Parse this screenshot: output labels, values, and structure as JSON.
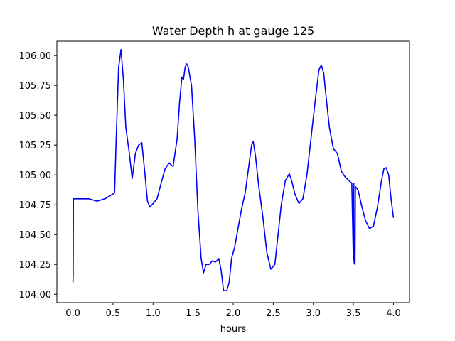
{
  "chart_data": {
    "type": "line",
    "title": "Water Depth h at gauge 125",
    "xlabel": "hours",
    "ylabel": "",
    "xlim": [
      -0.2,
      4.2
    ],
    "ylim": [
      103.93,
      106.12
    ],
    "xticks": [
      0.0,
      0.5,
      1.0,
      1.5,
      2.0,
      2.5,
      3.0,
      3.5,
      4.0
    ],
    "xtick_labels": [
      "0.0",
      "0.5",
      "1.0",
      "1.5",
      "2.0",
      "2.5",
      "3.0",
      "3.5",
      "4.0"
    ],
    "yticks": [
      104.0,
      104.25,
      104.5,
      104.75,
      105.0,
      105.25,
      105.5,
      105.75,
      106.0
    ],
    "ytick_labels": [
      "104.00",
      "104.25",
      "104.50",
      "104.75",
      "105.00",
      "105.25",
      "105.50",
      "105.75",
      "106.00"
    ],
    "grid": false,
    "series": [
      {
        "color": "#0000ff",
        "x": [
          0.0,
          0.003,
          0.006,
          0.2,
          0.3,
          0.4,
          0.5,
          0.52,
          0.54,
          0.57,
          0.6,
          0.63,
          0.66,
          0.7,
          0.74,
          0.78,
          0.82,
          0.86,
          0.9,
          0.93,
          0.96,
          1.0,
          1.05,
          1.1,
          1.15,
          1.2,
          1.25,
          1.3,
          1.33,
          1.36,
          1.38,
          1.4,
          1.42,
          1.44,
          1.48,
          1.52,
          1.56,
          1.6,
          1.63,
          1.66,
          1.7,
          1.74,
          1.78,
          1.82,
          1.85,
          1.88,
          1.92,
          1.95,
          1.98,
          2.02,
          2.06,
          2.1,
          2.15,
          2.2,
          2.23,
          2.25,
          2.28,
          2.32,
          2.37,
          2.42,
          2.47,
          2.52,
          2.56,
          2.6,
          2.65,
          2.7,
          2.73,
          2.77,
          2.82,
          2.87,
          2.92,
          2.97,
          3.02,
          3.07,
          3.1,
          3.13,
          3.16,
          3.2,
          3.25,
          3.3,
          3.35,
          3.4,
          3.45,
          3.48,
          3.5,
          3.505,
          3.51,
          3.52,
          3.525,
          3.53,
          3.56,
          3.6,
          3.65,
          3.7,
          3.75,
          3.8,
          3.85,
          3.88,
          3.91,
          3.94,
          3.97,
          4.0
        ],
        "y": [
          104.1,
          104.15,
          104.8,
          104.8,
          104.78,
          104.8,
          104.84,
          104.85,
          105.3,
          105.9,
          106.05,
          105.8,
          105.4,
          105.2,
          104.97,
          105.18,
          105.25,
          105.27,
          105.0,
          104.78,
          104.73,
          104.76,
          104.8,
          104.93,
          105.05,
          105.1,
          105.07,
          105.3,
          105.6,
          105.82,
          105.8,
          105.9,
          105.93,
          105.9,
          105.75,
          105.3,
          104.7,
          104.3,
          104.18,
          104.25,
          104.25,
          104.28,
          104.27,
          104.3,
          104.2,
          104.03,
          104.03,
          104.1,
          104.3,
          104.4,
          104.55,
          104.7,
          104.85,
          105.1,
          105.25,
          105.28,
          105.15,
          104.9,
          104.65,
          104.35,
          104.21,
          104.25,
          104.5,
          104.75,
          104.95,
          105.01,
          104.95,
          104.84,
          104.76,
          104.8,
          105.0,
          105.3,
          105.6,
          105.88,
          105.92,
          105.85,
          105.65,
          105.4,
          105.22,
          105.18,
          105.03,
          104.98,
          104.95,
          104.93,
          104.28,
          104.93,
          104.26,
          104.25,
          104.9,
          104.9,
          104.87,
          104.75,
          104.62,
          104.55,
          104.57,
          104.73,
          104.95,
          105.05,
          105.06,
          105.0,
          104.8,
          104.64
        ]
      }
    ]
  }
}
